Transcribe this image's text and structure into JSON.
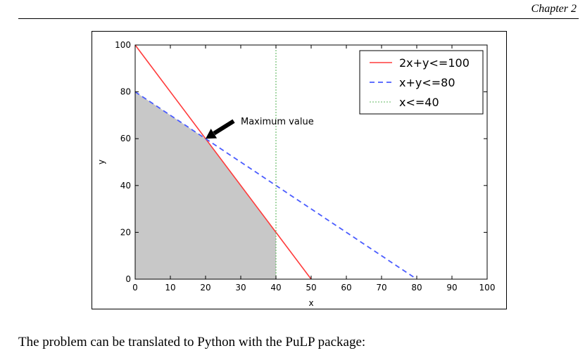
{
  "header": {
    "chapter": "Chapter 2"
  },
  "body": {
    "text": "The problem can be translated to Python with the PuLP package:"
  },
  "colors": {
    "c1": "#ff3b3b",
    "c2": "#4a5cff",
    "c3": "#62b862",
    "feasible": "#c8c8c8"
  },
  "chart_data": {
    "type": "line",
    "xlabel": "x",
    "ylabel": "y",
    "xlim": [
      0,
      100
    ],
    "ylim": [
      0,
      100
    ],
    "xticks": [
      0,
      10,
      20,
      30,
      40,
      50,
      60,
      70,
      80,
      90,
      100
    ],
    "yticks": [
      0,
      20,
      40,
      60,
      80,
      100
    ],
    "grid": false,
    "legend_position": "top-right",
    "series": [
      {
        "name": "2x+y<=100",
        "style": "solid",
        "color": "#ff3b3b",
        "x": [
          0,
          50
        ],
        "y": [
          100,
          0
        ]
      },
      {
        "name": "x+y<=80",
        "style": "dashed",
        "color": "#4a5cff",
        "x": [
          0,
          80
        ],
        "y": [
          80,
          0
        ]
      },
      {
        "name": "x<=40",
        "style": "dotted",
        "color": "#62b862",
        "x": [
          40,
          40
        ],
        "y": [
          0,
          100
        ]
      }
    ],
    "feasible_region": {
      "x": [
        0,
        0,
        20,
        40,
        40
      ],
      "y": [
        0,
        80,
        60,
        20,
        0
      ]
    },
    "annotation": {
      "text": "Maximum value",
      "point": [
        20,
        60
      ],
      "text_at": [
        30,
        67
      ]
    }
  }
}
